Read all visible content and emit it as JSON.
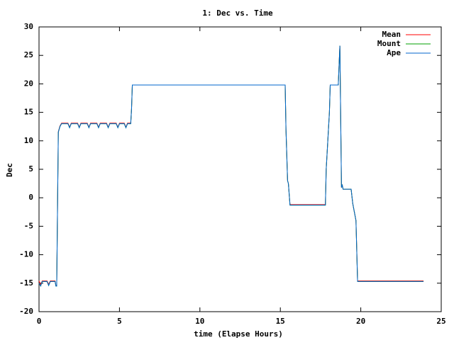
{
  "chart_data": {
    "type": "line",
    "title": "1: Dec vs. Time",
    "x_label": "time (Elapse Hours)",
    "y_label": "Dec",
    "xlim": [
      0,
      25
    ],
    "xticks": [
      0,
      5,
      10,
      15,
      20,
      25
    ],
    "ylim": [
      -20,
      30
    ],
    "yticks": [
      -20,
      -15,
      -10,
      -5,
      0,
      5,
      10,
      15,
      20,
      25,
      30
    ],
    "legend": "top-right",
    "x": [
      0,
      0.1,
      0.2,
      0.5,
      0.6,
      0.7,
      1.0,
      1.05,
      1.1,
      1.15,
      1.2,
      1.3,
      1.4,
      1.8,
      1.9,
      2.0,
      2.4,
      2.5,
      2.6,
      3.0,
      3.1,
      3.2,
      3.6,
      3.7,
      3.8,
      4.2,
      4.3,
      4.4,
      4.8,
      4.9,
      5.0,
      5.3,
      5.4,
      5.5,
      5.7,
      5.75,
      5.8,
      15.3,
      15.35,
      15.45,
      15.5,
      15.6,
      17.8,
      17.85,
      18.05,
      18.1,
      18.6,
      18.7,
      18.8,
      18.85,
      18.9,
      19.4,
      19.5,
      19.7,
      19.8,
      23.9
    ],
    "series": [
      {
        "name": "Mean",
        "color": "#ff0000",
        "values": [
          -14.6,
          -15.3,
          -14.6,
          -14.6,
          -15.2,
          -14.6,
          -14.6,
          -15.4,
          -15.4,
          -2,
          11.6,
          12.6,
          13.1,
          13.1,
          12.4,
          13.1,
          13.1,
          12.4,
          13.1,
          13.1,
          12.4,
          13.1,
          13.1,
          12.4,
          13.1,
          13.1,
          12.4,
          13.1,
          13.1,
          12.4,
          13.1,
          13.1,
          12.4,
          13.1,
          13.1,
          15.5,
          19.8,
          19.8,
          12,
          3,
          2.5,
          -1.2,
          -1.2,
          5,
          15,
          19.8,
          19.8,
          26.7,
          1.8,
          2.2,
          1.5,
          1.5,
          -1,
          -4,
          -14.6,
          -14.6
        ]
      },
      {
        "name": "Mount",
        "color": "#00a000",
        "values": [
          -15,
          -15.5,
          -14.7,
          -14.7,
          -15.4,
          -14.7,
          -14.7,
          -15.5,
          -15.5,
          -2,
          11.5,
          12.5,
          13,
          13,
          12.3,
          13,
          13,
          12.3,
          13,
          13,
          12.3,
          13,
          13,
          12.3,
          13,
          13,
          12.3,
          13,
          13,
          12.3,
          13,
          13,
          12.3,
          13,
          13,
          15.5,
          19.8,
          19.8,
          12,
          3,
          2.5,
          -1.3,
          -1.3,
          5,
          15,
          19.8,
          19.8,
          26.7,
          1.8,
          2.2,
          1.5,
          1.5,
          -1,
          -4,
          -14.7,
          -14.7
        ]
      },
      {
        "name": "Ape",
        "color": "#0066cc",
        "values": [
          -15,
          -15.5,
          -14.7,
          -14.7,
          -15.4,
          -14.7,
          -14.7,
          -15.5,
          -15.5,
          -2,
          11.5,
          12.5,
          13,
          13,
          12.3,
          13,
          13,
          12.3,
          13,
          13,
          12.3,
          13,
          13,
          12.3,
          13,
          13,
          12.3,
          13,
          13,
          12.3,
          13,
          13,
          12.3,
          13,
          13,
          15.5,
          19.8,
          19.8,
          12,
          3,
          2.5,
          -1.3,
          -1.3,
          5,
          15,
          19.8,
          19.8,
          26.7,
          1.8,
          2.2,
          1.5,
          1.5,
          -1,
          -4,
          -14.7,
          -14.7
        ]
      }
    ]
  }
}
